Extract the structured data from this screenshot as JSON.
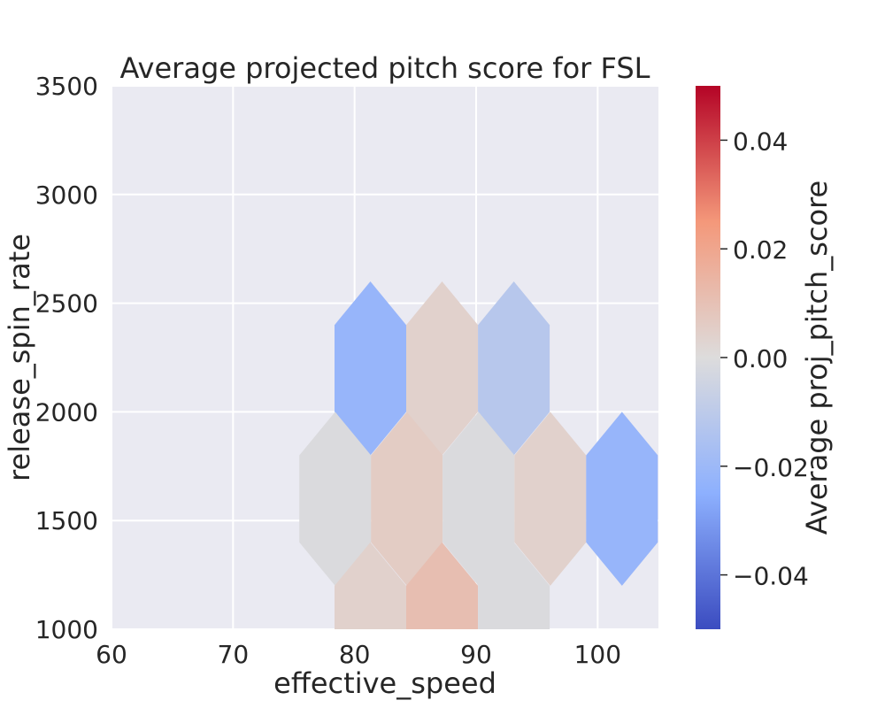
{
  "chart_data": {
    "type": "hexbin",
    "title": "Average projected pitch score for FSL",
    "xlabel": "effective_speed",
    "ylabel": "release_spin_rate",
    "xlim": [
      60,
      105
    ],
    "ylim": [
      1000,
      3500
    ],
    "xticks": [
      "60",
      "70",
      "80",
      "90",
      "100"
    ],
    "yticks": [
      "1000",
      "1500",
      "2000",
      "2500",
      "3000",
      "3500"
    ],
    "grid": true,
    "background": "#eaeaf2",
    "colormap": "coolwarm",
    "colorbar": {
      "label": "Average proj_pitch_score",
      "min": -0.05,
      "max": 0.05,
      "ticks": [
        "0.04",
        "0.02",
        "0.00",
        "−0.02",
        "−0.04"
      ],
      "tick_values": [
        0.04,
        0.02,
        0.0,
        -0.02,
        -0.04
      ]
    },
    "hex_size": {
      "x": 2.95,
      "y": 800
    },
    "bins": [
      {
        "x": 81.3,
        "y": 2200,
        "value": -0.022
      },
      {
        "x": 87.2,
        "y": 2200,
        "value": 0.004
      },
      {
        "x": 93.1,
        "y": 2200,
        "value": -0.012
      },
      {
        "x": 78.4,
        "y": 1600,
        "value": -0.001
      },
      {
        "x": 84.3,
        "y": 1600,
        "value": 0.006
      },
      {
        "x": 90.2,
        "y": 1600,
        "value": -0.001
      },
      {
        "x": 96.1,
        "y": 1600,
        "value": 0.004
      },
      {
        "x": 102.0,
        "y": 1600,
        "value": -0.022
      },
      {
        "x": 81.3,
        "y": 1000,
        "value": 0.004
      },
      {
        "x": 87.2,
        "y": 1000,
        "value": 0.011
      },
      {
        "x": 93.1,
        "y": 1000,
        "value": -0.001
      }
    ]
  }
}
